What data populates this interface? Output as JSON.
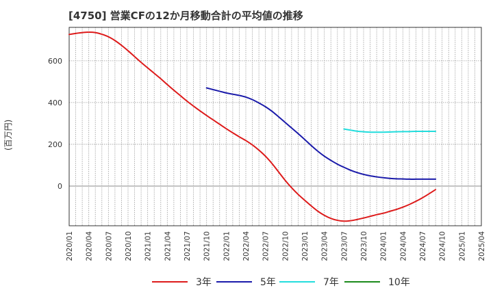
{
  "header": {
    "title": "[4750]  営業CFの12か月移動合計の平均値の推移"
  },
  "chart_data": {
    "type": "line",
    "title": "[4750]  営業CFの12か月移動合計の平均値の推移",
    "ylabel": "(百万円)",
    "xlabel": "",
    "ylim": [
      -190,
      760
    ],
    "yticks": [
      0,
      200,
      400,
      600
    ],
    "xticks": [
      "2020/01",
      "2020/04",
      "2020/07",
      "2020/10",
      "2021/01",
      "2021/04",
      "2021/07",
      "2021/10",
      "2022/01",
      "2022/04",
      "2022/07",
      "2022/10",
      "2023/01",
      "2023/04",
      "2023/07",
      "2023/10",
      "2024/01",
      "2024/04",
      "2024/07",
      "2024/10",
      "2025/01",
      "2025/04"
    ],
    "grid": true,
    "legend_position": "bottom",
    "series": [
      {
        "name": "3年",
        "color": "#dd1a1a",
        "points": [
          [
            "2020/01",
            726
          ],
          [
            "2020/02",
            731
          ],
          [
            "2020/03",
            735
          ],
          [
            "2020/04",
            737
          ],
          [
            "2020/05",
            735
          ],
          [
            "2020/06",
            727
          ],
          [
            "2020/07",
            715
          ],
          [
            "2020/08",
            697
          ],
          [
            "2020/09",
            674
          ],
          [
            "2020/10",
            648
          ],
          [
            "2020/11",
            620
          ],
          [
            "2020/12",
            592
          ],
          [
            "2021/01",
            566
          ],
          [
            "2021/02",
            540
          ],
          [
            "2021/03",
            514
          ],
          [
            "2021/04",
            486
          ],
          [
            "2021/05",
            459
          ],
          [
            "2021/06",
            433
          ],
          [
            "2021/07",
            407
          ],
          [
            "2021/08",
            383
          ],
          [
            "2021/09",
            360
          ],
          [
            "2021/10",
            338
          ],
          [
            "2021/11",
            317
          ],
          [
            "2021/12",
            296
          ],
          [
            "2022/01",
            275
          ],
          [
            "2022/02",
            255
          ],
          [
            "2022/03",
            236
          ],
          [
            "2022/04",
            218
          ],
          [
            "2022/05",
            197
          ],
          [
            "2022/06",
            172
          ],
          [
            "2022/07",
            143
          ],
          [
            "2022/08",
            108
          ],
          [
            "2022/09",
            68
          ],
          [
            "2022/10",
            28
          ],
          [
            "2022/11",
            -8
          ],
          [
            "2022/12",
            -40
          ],
          [
            "2023/01",
            -68
          ],
          [
            "2023/02",
            -95
          ],
          [
            "2023/03",
            -120
          ],
          [
            "2023/04",
            -140
          ],
          [
            "2023/05",
            -155
          ],
          [
            "2023/06",
            -164
          ],
          [
            "2023/07",
            -168
          ],
          [
            "2023/08",
            -166
          ],
          [
            "2023/09",
            -160
          ],
          [
            "2023/10",
            -153
          ],
          [
            "2023/11",
            -145
          ],
          [
            "2023/12",
            -137
          ],
          [
            "2024/01",
            -130
          ],
          [
            "2024/02",
            -121
          ],
          [
            "2024/03",
            -112
          ],
          [
            "2024/04",
            -101
          ],
          [
            "2024/05",
            -88
          ],
          [
            "2024/06",
            -73
          ],
          [
            "2024/07",
            -56
          ],
          [
            "2024/08",
            -37
          ],
          [
            "2024/09",
            -17
          ]
        ]
      },
      {
        "name": "5年",
        "color": "#1a1aaa",
        "points": [
          [
            "2021/10",
            470
          ],
          [
            "2021/11",
            462
          ],
          [
            "2021/12",
            454
          ],
          [
            "2022/01",
            446
          ],
          [
            "2022/02",
            440
          ],
          [
            "2022/03",
            434
          ],
          [
            "2022/04",
            426
          ],
          [
            "2022/05",
            414
          ],
          [
            "2022/06",
            398
          ],
          [
            "2022/07",
            380
          ],
          [
            "2022/08",
            358
          ],
          [
            "2022/09",
            332
          ],
          [
            "2022/10",
            305
          ],
          [
            "2022/11",
            278
          ],
          [
            "2022/12",
            251
          ],
          [
            "2023/01",
            223
          ],
          [
            "2023/02",
            194
          ],
          [
            "2023/03",
            167
          ],
          [
            "2023/04",
            143
          ],
          [
            "2023/05",
            123
          ],
          [
            "2023/06",
            105
          ],
          [
            "2023/07",
            90
          ],
          [
            "2023/08",
            76
          ],
          [
            "2023/09",
            65
          ],
          [
            "2023/10",
            56
          ],
          [
            "2023/11",
            49
          ],
          [
            "2023/12",
            44
          ],
          [
            "2024/01",
            40
          ],
          [
            "2024/02",
            37
          ],
          [
            "2024/03",
            35
          ],
          [
            "2024/04",
            34
          ],
          [
            "2024/05",
            33
          ],
          [
            "2024/06",
            33
          ],
          [
            "2024/07",
            33
          ],
          [
            "2024/08",
            33
          ],
          [
            "2024/09",
            33
          ]
        ]
      },
      {
        "name": "7年",
        "color": "#22dddd",
        "points": [
          [
            "2023/07",
            273
          ],
          [
            "2023/08",
            268
          ],
          [
            "2023/09",
            263
          ],
          [
            "2023/10",
            260
          ],
          [
            "2023/11",
            258
          ],
          [
            "2023/12",
            258
          ],
          [
            "2024/01",
            258
          ],
          [
            "2024/02",
            259
          ],
          [
            "2024/03",
            260
          ],
          [
            "2024/04",
            261
          ],
          [
            "2024/05",
            261
          ],
          [
            "2024/06",
            262
          ],
          [
            "2024/07",
            262
          ],
          [
            "2024/08",
            262
          ],
          [
            "2024/09",
            262
          ]
        ]
      },
      {
        "name": "10年",
        "color": "#1a8a1a",
        "points": []
      }
    ]
  }
}
